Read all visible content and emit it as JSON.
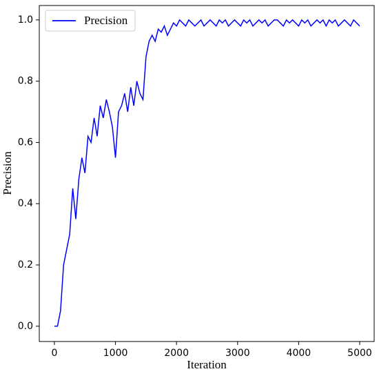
{
  "chart_data": {
    "type": "line",
    "xlabel": "Iteration",
    "ylabel": "Precision",
    "x": [
      0,
      50,
      100,
      150,
      200,
      250,
      300,
      350,
      400,
      450,
      500,
      550,
      600,
      650,
      700,
      750,
      800,
      850,
      900,
      950,
      1000,
      1050,
      1100,
      1150,
      1200,
      1250,
      1300,
      1350,
      1400,
      1450,
      1500,
      1550,
      1600,
      1650,
      1700,
      1750,
      1800,
      1850,
      1900,
      1950,
      2000,
      2050,
      2100,
      2150,
      2200,
      2250,
      2300,
      2350,
      2400,
      2450,
      2500,
      2550,
      2600,
      2650,
      2700,
      2750,
      2800,
      2850,
      2900,
      2950,
      3000,
      3050,
      3100,
      3150,
      3200,
      3250,
      3300,
      3350,
      3400,
      3450,
      3500,
      3550,
      3600,
      3650,
      3700,
      3750,
      3800,
      3850,
      3900,
      3950,
      4000,
      4050,
      4100,
      4150,
      4200,
      4250,
      4300,
      4350,
      4400,
      4450,
      4500,
      4550,
      4600,
      4650,
      4700,
      4750,
      4800,
      4850,
      4900,
      4950,
      5000
    ],
    "series": [
      {
        "name": "Precision",
        "color": "#0000ff",
        "values": [
          0,
          0,
          0.05,
          0.2,
          0.25,
          0.3,
          0.45,
          0.35,
          0.48,
          0.55,
          0.5,
          0.62,
          0.6,
          0.68,
          0.62,
          0.72,
          0.68,
          0.74,
          0.7,
          0.65,
          0.55,
          0.7,
          0.72,
          0.76,
          0.7,
          0.78,
          0.72,
          0.8,
          0.76,
          0.74,
          0.88,
          0.93,
          0.95,
          0.93,
          0.97,
          0.96,
          0.98,
          0.95,
          0.97,
          0.99,
          0.98,
          1.0,
          0.99,
          0.98,
          1.0,
          0.99,
          0.98,
          0.99,
          1.0,
          0.98,
          0.99,
          1.0,
          0.99,
          0.98,
          1.0,
          0.99,
          1.0,
          0.98,
          0.99,
          1.0,
          0.99,
          0.98,
          1.0,
          0.99,
          1.0,
          0.98,
          0.99,
          1.0,
          0.99,
          1.0,
          0.98,
          0.99,
          1.0,
          1.0,
          0.99,
          0.98,
          1.0,
          0.99,
          1.0,
          0.99,
          0.98,
          1.0,
          0.99,
          1.0,
          0.98,
          0.99,
          1.0,
          0.99,
          1.0,
          0.98,
          1.0,
          0.99,
          1.0,
          0.98,
          0.99,
          1.0,
          0.99,
          0.98,
          1.0,
          0.99,
          0.98
        ]
      }
    ],
    "xlim": [
      -248,
      5237
    ],
    "ylim": [
      -0.05,
      1.047
    ],
    "xticks": [
      0,
      1000,
      2000,
      3000,
      4000,
      5000
    ],
    "yticks": [
      {
        "value": 0,
        "label": "0.0"
      },
      0.2,
      0.4,
      0.6,
      0.8,
      {
        "value": 1,
        "label": "1.0"
      }
    ],
    "legend": "upper left"
  }
}
